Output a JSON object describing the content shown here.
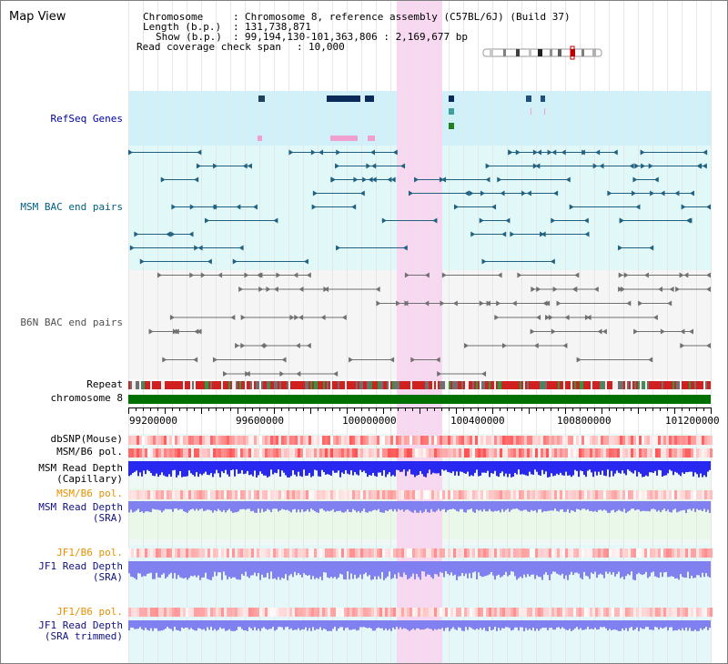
{
  "header": {
    "title": "Map View",
    "chromosome_label": "Chromosome",
    "chromosome_value": "Chromosome 8, reference assembly (C57BL/6J) (Build 37)",
    "length_label": "Length (b.p.)",
    "length_value": "131,738,871",
    "show_label": "Show (b.p.)",
    "show_value": "99,194,130-101,363,806 : 2,169,677 bp",
    "coverage_label": "Read coverage check span",
    "coverage_value": "10,000"
  },
  "tracks": {
    "refseq": "RefSeq Genes",
    "msm_bac": "MSM BAC end pairs",
    "b6n_bac": "B6N BAC end pairs",
    "repeat": "Repeat",
    "chromosome": "chromosome 8",
    "dbsnp": "dbSNP(Mouse)",
    "msm_b6_pol": "MSM/B6 pol.",
    "msm_read_depth_cap_1": "MSM Read Depth",
    "msm_read_depth_cap_2": "(Capillary)",
    "msm_b6_pol_2": "MSM/B6 pol.",
    "msm_read_depth_sra_1": "MSM Read Depth",
    "msm_read_depth_sra_2": "(SRA)",
    "jf1_b6_pol": "JF1/B6 pol.",
    "jf1_read_depth_sra_1": "JF1 Read Depth",
    "jf1_read_depth_sra_2": "(SRA)",
    "jf1_b6_pol_2": "JF1/B6 pol.",
    "jf1_read_depth_trim_1": "JF1 Read Depth",
    "jf1_read_depth_trim_2": "(SRA trimmed)"
  },
  "axis": {
    "ticks": [
      "99200000",
      "99600000",
      "100000000",
      "100400000",
      "100800000",
      "101200000"
    ]
  },
  "colors": {
    "highlight": "#f8d8f0",
    "refseq_bg": "#d0f0fa",
    "msm_bg": "#e0f8f8",
    "b6n_bg": "#f5f5f5",
    "msm_feature": "#206080",
    "b6n_feature": "#707070",
    "chromosome": "#007000",
    "depth_blue": "#2828f0",
    "depth_violet": "#8080f0",
    "pol_red": "#f06060"
  }
}
